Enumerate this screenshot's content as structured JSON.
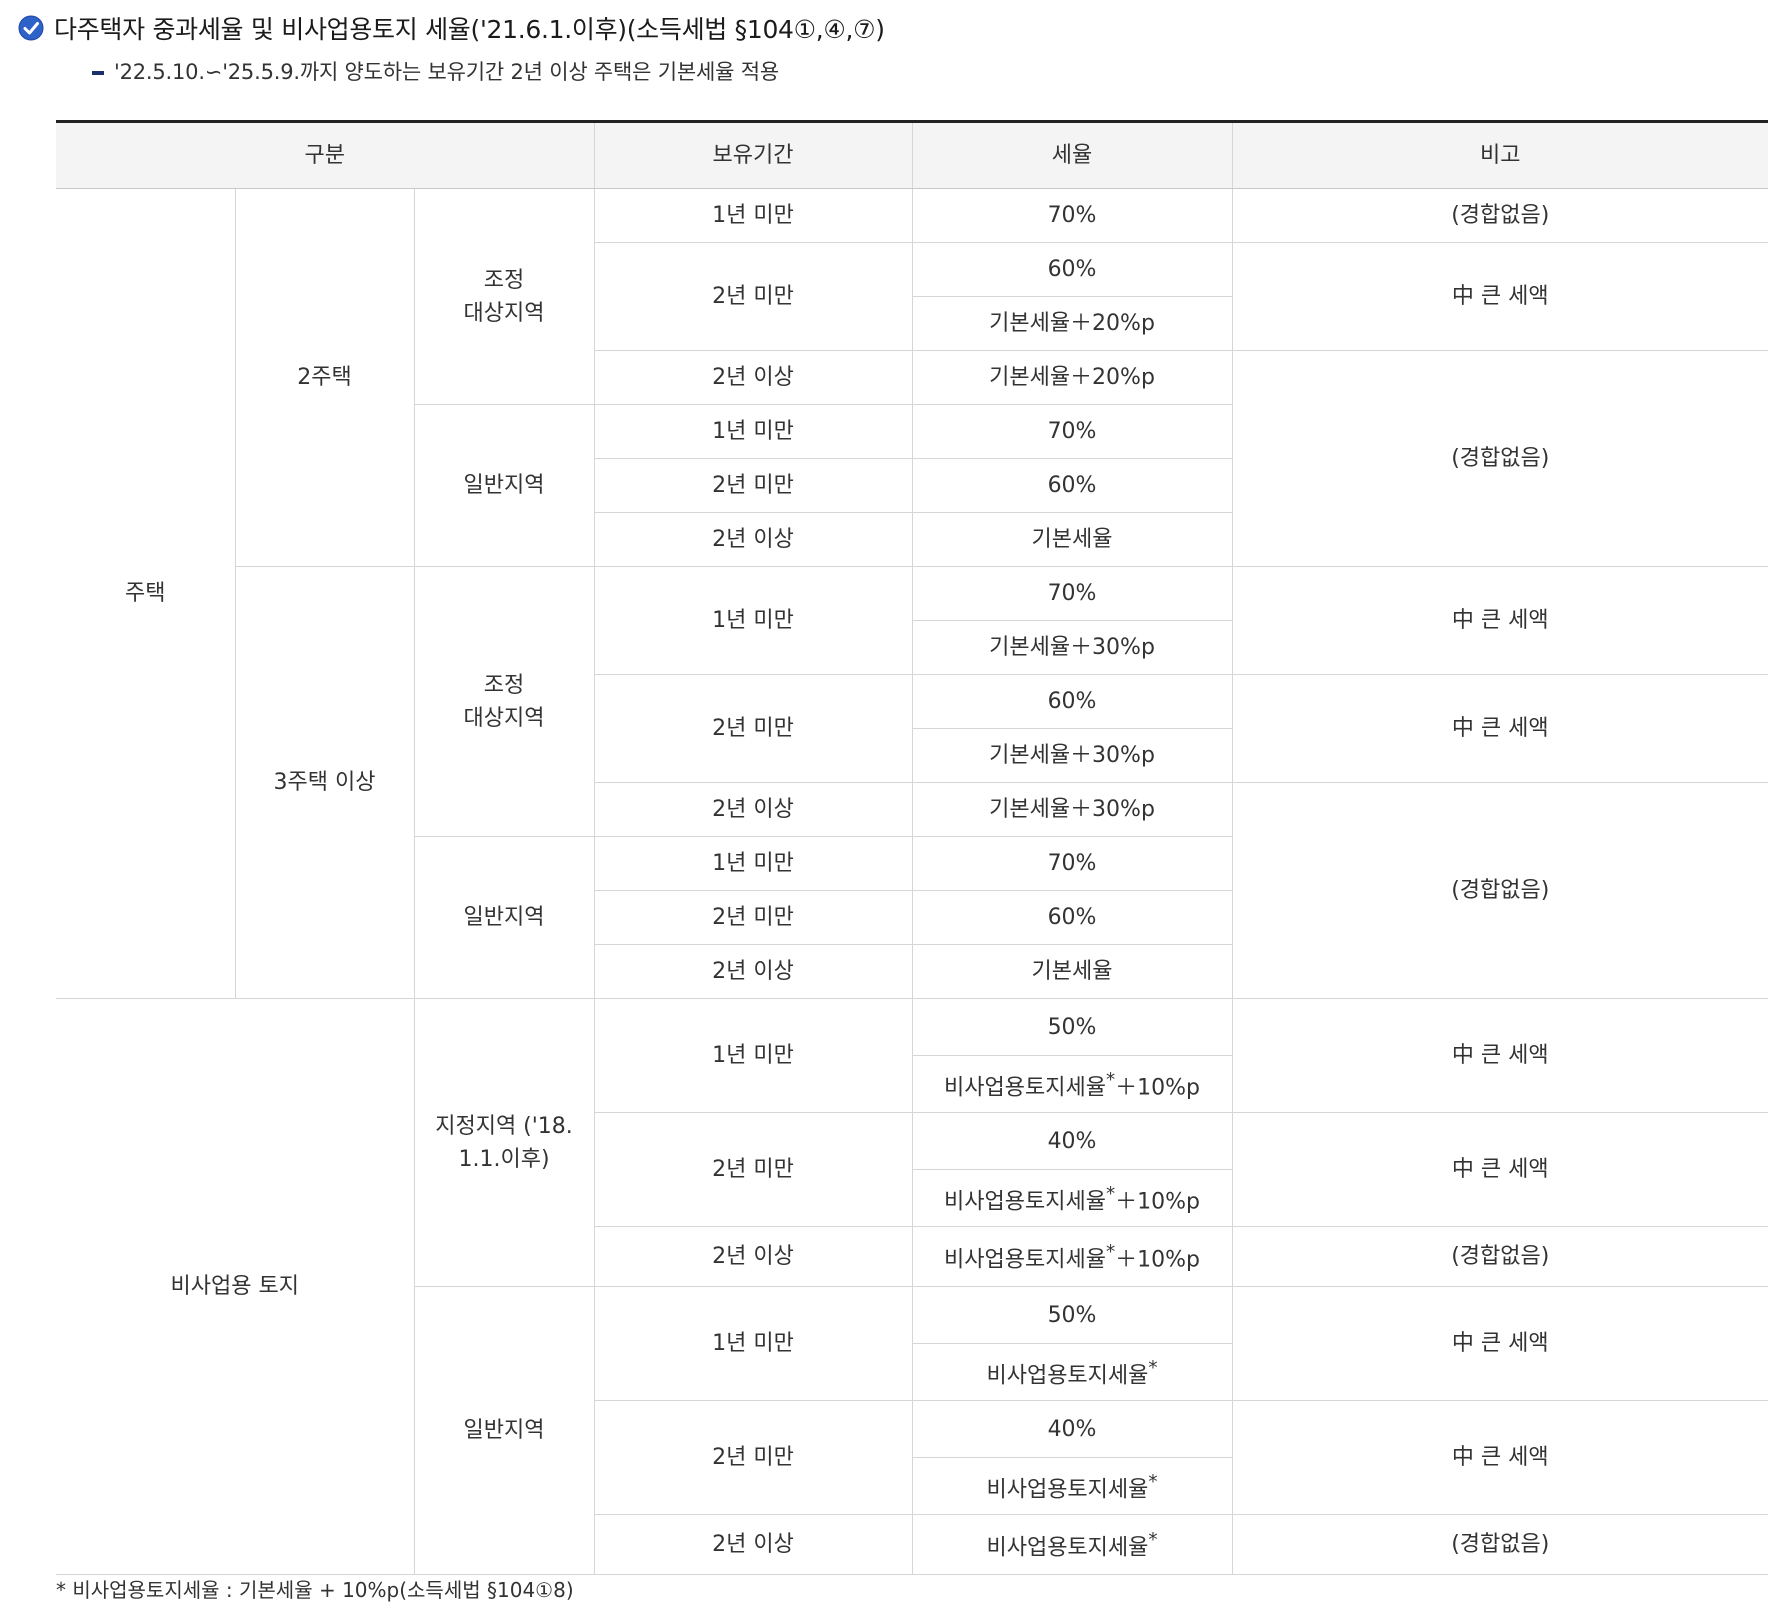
{
  "header": {
    "title": "다주택자 중과세율 및 비사업용토지 세율('21.6.1.이후)(소득세법 §104①,④,⑦)",
    "note": "'22.5.10.∽'25.5.9.까지 양도하는 보유기간 2년 이상 주택은 기본세율 적용"
  },
  "table": {
    "headers": {
      "category": "구분",
      "period": "보유기간",
      "rate": "세율",
      "remark": "비고"
    },
    "housing": "주택",
    "two_homes": "2주택",
    "three_homes": "3주택 이상",
    "adjusted_area_line1": "조정",
    "adjusted_area_line2": "대상지역",
    "general_area": "일반지역",
    "nonbiz_land": "비사업용 토지",
    "designated_area_line1": "지정지역 ('18.",
    "designated_area_line2": "1.1.이후)",
    "periods": {
      "lt1": "1년 미만",
      "lt2": "2년 미만",
      "ge2": "2년 이상"
    },
    "rates": {
      "r70": "70%",
      "r60": "60%",
      "r50": "50%",
      "r40": "40%",
      "basic": "기본세율",
      "basic_plus20": "기본세율＋20%p",
      "basic_plus30": "기본세율＋30%p",
      "nonbiz_base": "비사업용토지세율",
      "asterisk": "*",
      "plus10": "＋10%p"
    },
    "remarks": {
      "no_compare": "(경합없음)",
      "larger": "中 큰 세액"
    }
  },
  "footnote": "* 비사업용토지세율 : 기본세율 + 10%p(소득세법 §104①8)",
  "colors": {
    "check_icon": "#2f62c8",
    "header_bg": "#f4f4f4",
    "border": "#d6d6d6",
    "top_rule": "#222222"
  }
}
